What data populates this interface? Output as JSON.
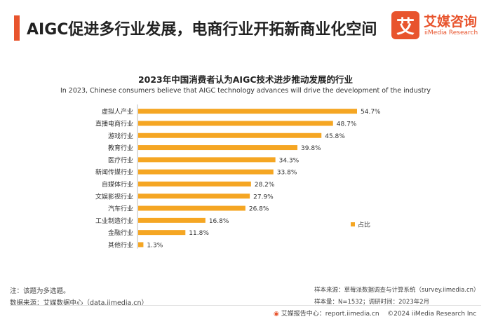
{
  "header": {
    "title": "AIGC促进多行业发展，电商行业开拓新商业化空间",
    "logo_mark": "艾",
    "logo_cn": "艾媒咨询",
    "logo_en": "iiMedia Research"
  },
  "chart_data": {
    "type": "bar",
    "orientation": "horizontal",
    "title": "2023年中国消费者认为AIGC技术进步推动发展的行业",
    "subtitle": "In 2023, Chinese consumers believe that AIGC technology advances will drive the development of the industry",
    "categories": [
      "虚拟人产业",
      "直播电商行业",
      "游戏行业",
      "教育行业",
      "医疗行业",
      "新闻传媒行业",
      "自媒体行业",
      "文娱影视行业",
      "汽车行业",
      "工业制造行业",
      "金融行业",
      "其他行业"
    ],
    "series": [
      {
        "name": "占比",
        "values": [
          54.7,
          48.7,
          45.8,
          39.8,
          34.3,
          33.8,
          28.2,
          27.9,
          26.8,
          16.8,
          11.8,
          1.3
        ],
        "color": "#f5a623"
      }
    ],
    "value_suffix": "%",
    "legend": "right",
    "grid": false
  },
  "notes": {
    "note1": "注：该题为多选题。",
    "source_left": "数据来源：艾媒数据中心（data.iimedia.cn）",
    "sample_source": "样本来源：草莓派数据调查与计算系统（survey.iimedia.cn）",
    "sample_info": "样本量：N=1532；调研时间：2023年2月"
  },
  "footer": {
    "report_center": "艾媒报告中心：report.iimedia.cn",
    "copyright": "©2024  iiMedia Research  Inc"
  }
}
